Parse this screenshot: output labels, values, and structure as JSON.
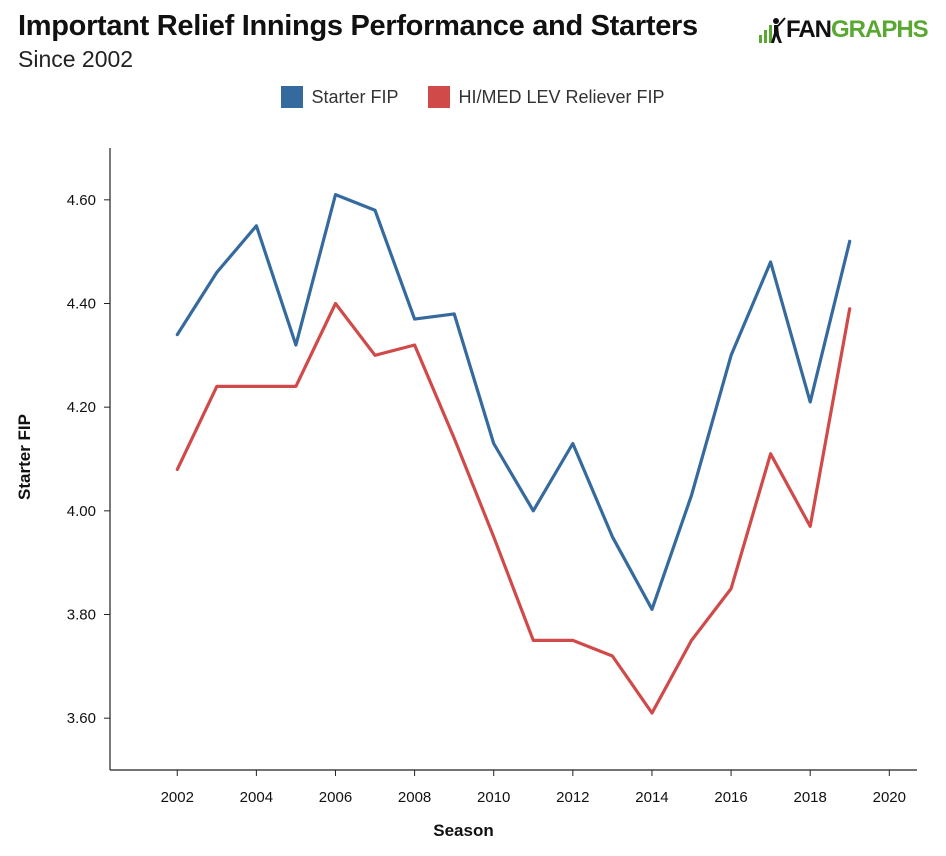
{
  "header": {
    "title": "Important Relief Innings Performance and Starters",
    "subtitle": "Since 2002",
    "logo_text_left": "FAN",
    "logo_text_right": "GRAPHS"
  },
  "colors": {
    "starter": "#356a9e",
    "reliever": "#d04a4a",
    "brand_green": "#5aa832"
  },
  "chart_data": {
    "type": "line",
    "xlabel": "Season",
    "ylabel": "Starter FIP",
    "xlim": [
      2000.3,
      2020.7
    ],
    "ylim": [
      3.5,
      4.7
    ],
    "x_ticks": [
      2002,
      2004,
      2006,
      2008,
      2010,
      2012,
      2014,
      2016,
      2018,
      2020
    ],
    "x_tick_labels": [
      "2002",
      "2004",
      "2006",
      "2008",
      "2010",
      "2012",
      "2014",
      "2016",
      "2018",
      "2020"
    ],
    "y_ticks": [
      3.6,
      3.8,
      4.0,
      4.2,
      4.4,
      4.6
    ],
    "y_tick_labels": [
      "3.60",
      "3.80",
      "4.00",
      "4.20",
      "4.40",
      "4.60"
    ],
    "legend_position": "top-center",
    "grid": false,
    "x": [
      2002,
      2003,
      2004,
      2005,
      2006,
      2007,
      2008,
      2009,
      2010,
      2011,
      2012,
      2013,
      2014,
      2015,
      2016,
      2017,
      2018,
      2019
    ],
    "series": [
      {
        "name": "Starter FIP",
        "values": [
          4.34,
          4.46,
          4.55,
          4.32,
          4.61,
          4.58,
          4.37,
          4.38,
          4.13,
          4.0,
          4.13,
          3.95,
          3.81,
          4.03,
          4.3,
          4.48,
          4.21,
          4.52
        ]
      },
      {
        "name": "HI/MED LEV Reliever FIP",
        "values": [
          4.08,
          4.24,
          4.24,
          4.24,
          4.4,
          4.3,
          4.32,
          4.14,
          3.95,
          3.75,
          3.75,
          3.72,
          3.61,
          3.75,
          3.85,
          4.11,
          3.97,
          4.39
        ]
      }
    ]
  }
}
